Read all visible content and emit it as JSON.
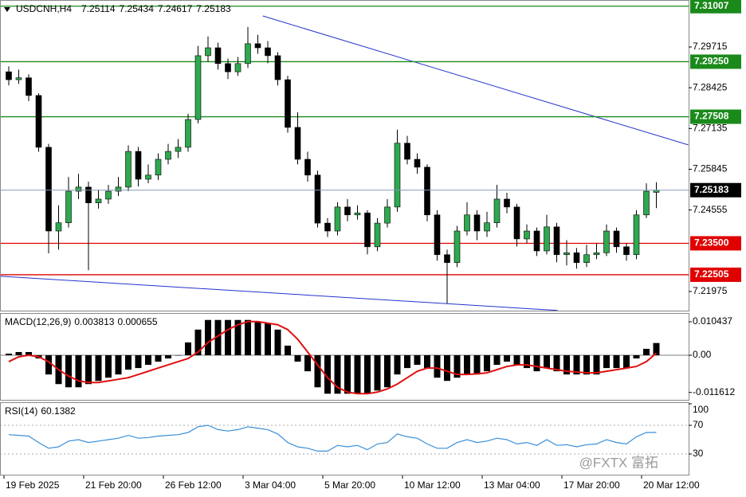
{
  "chart_data": [
    {
      "type": "candlestick",
      "title": "USDCNH,H4",
      "open": [
        7.2893,
        7.2868,
        7.2874,
        7.2818,
        7.2654,
        7.2389,
        7.2415,
        7.2515,
        7.2528,
        7.2478,
        7.249,
        7.2515,
        7.2528,
        7.2641,
        7.2553,
        7.2566,
        7.2616,
        7.2641,
        7.2654,
        7.2742,
        7.2944,
        7.2969,
        7.2919,
        7.2893,
        7.2919,
        7.2982,
        7.2969,
        7.2944,
        7.2868,
        7.2717,
        7.2616,
        7.2566,
        7.2414,
        7.2389,
        7.2465,
        7.244,
        7.2446,
        7.2339,
        7.2414,
        7.2465,
        7.2667,
        7.2616,
        7.2591,
        7.244,
        7.2314,
        7.2289,
        7.2389,
        7.244,
        7.2389,
        7.2415,
        7.249,
        7.2465,
        7.2364,
        7.2389,
        7.2326,
        7.2402,
        7.2314,
        7.232,
        7.2289,
        7.2314,
        7.232,
        7.2389,
        7.2339,
        7.2314,
        7.244,
        7.25114
      ],
      "high": [
        7.291,
        7.29,
        7.2885,
        7.2825,
        7.2665,
        7.247,
        7.256,
        7.257,
        7.2545,
        7.252,
        7.2535,
        7.256,
        7.266,
        7.2655,
        7.26,
        7.2635,
        7.2665,
        7.268,
        7.276,
        7.2975,
        7.3005,
        7.2985,
        7.2935,
        7.294,
        7.3035,
        7.301,
        7.299,
        7.2955,
        7.288,
        7.2765,
        7.264,
        7.258,
        7.243,
        7.248,
        7.249,
        7.247,
        7.2455,
        7.243,
        7.249,
        7.271,
        7.269,
        7.2635,
        7.26,
        7.2455,
        7.233,
        7.2405,
        7.248,
        7.2455,
        7.245,
        7.2535,
        7.251,
        7.2475,
        7.241,
        7.24,
        7.244,
        7.2415,
        7.236,
        7.2335,
        7.2345,
        7.235,
        7.241,
        7.24,
        7.235,
        7.2455,
        7.254,
        7.25434
      ],
      "low": [
        7.285,
        7.2855,
        7.28,
        7.264,
        7.2318,
        7.233,
        7.24,
        7.249,
        7.2265,
        7.246,
        7.2475,
        7.25,
        7.2515,
        7.253,
        7.254,
        7.255,
        7.26,
        7.262,
        7.264,
        7.273,
        7.2925,
        7.29,
        7.287,
        7.288,
        7.2905,
        7.295,
        7.292,
        7.285,
        7.27,
        7.26,
        7.2545,
        7.24,
        7.237,
        7.2375,
        7.242,
        7.2425,
        7.2315,
        7.2325,
        7.24,
        7.245,
        7.26,
        7.257,
        7.242,
        7.2295,
        7.216,
        7.2275,
        7.2375,
        7.236,
        7.237,
        7.24,
        7.2445,
        7.234,
        7.235,
        7.231,
        7.2315,
        7.229,
        7.228,
        7.227,
        7.2275,
        7.23,
        7.231,
        7.232,
        7.2295,
        7.23,
        7.243,
        7.24617
      ],
      "close": [
        7.2868,
        7.2874,
        7.2818,
        7.2654,
        7.2389,
        7.2415,
        7.2515,
        7.2528,
        7.2478,
        7.249,
        7.2515,
        7.2528,
        7.2641,
        7.2553,
        7.2566,
        7.2616,
        7.2641,
        7.2654,
        7.2742,
        7.2944,
        7.2969,
        7.2919,
        7.2893,
        7.2919,
        7.2982,
        7.2969,
        7.2944,
        7.2868,
        7.2717,
        7.2616,
        7.2566,
        7.2414,
        7.2389,
        7.2465,
        7.244,
        7.2446,
        7.2339,
        7.2414,
        7.2465,
        7.2667,
        7.2616,
        7.2591,
        7.244,
        7.2314,
        7.2289,
        7.2389,
        7.244,
        7.2389,
        7.2415,
        7.249,
        7.2465,
        7.2364,
        7.2389,
        7.2326,
        7.2402,
        7.2314,
        7.232,
        7.2289,
        7.2314,
        7.232,
        7.2389,
        7.2339,
        7.2314,
        7.244,
        7.2515,
        7.25183
      ],
      "bull_color": "#2fa84f",
      "bear_color": "#000000",
      "ylim": [
        7.21369,
        7.31203
      ],
      "yticks": [
        7.29715,
        7.28425,
        7.27135,
        7.25845,
        7.24555,
        7.21975
      ],
      "levels": [
        {
          "value": 7.31007,
          "label": "7.31007",
          "color": "#1a8a1a"
        },
        {
          "value": 7.2925,
          "label": "7.29250",
          "color": "#1a8a1a"
        },
        {
          "value": 7.27508,
          "label": "7.27508",
          "color": "#1a8a1a"
        },
        {
          "value": 7.235,
          "label": "7.23500",
          "color": "#e00000"
        },
        {
          "value": 7.22505,
          "label": "7.22505",
          "color": "#e00000"
        }
      ],
      "trendlines": [
        {
          "x": [
            25.5,
            68.2
          ],
          "y": [
            7.30698,
            7.26616
          ],
          "color": "#2233cc"
        },
        {
          "x": [
            -0.88,
            55.1
          ],
          "y": [
            7.22458,
            7.21374
          ],
          "color": "#2233cc"
        }
      ],
      "x_labels": [
        {
          "value": 0,
          "label": "19 Feb 2025"
        },
        {
          "value": 8,
          "label": "21 Feb 20:00"
        },
        {
          "value": 16,
          "label": "26 Feb 12:00"
        },
        {
          "value": 24,
          "label": "3 Mar 04:00"
        },
        {
          "value": 32,
          "label": "5 Mar 20:00"
        },
        {
          "value": 40,
          "label": "10 Mar 12:00"
        },
        {
          "value": 48,
          "label": "13 Mar 04:00"
        },
        {
          "value": 56,
          "label": "17 Mar 20:00"
        },
        {
          "value": 64,
          "label": "20 Mar 12:00"
        }
      ]
    },
    {
      "type": "macd",
      "title": "MACD(12,26,9)",
      "histogram": [
        0.0005,
        0.001,
        0.001,
        -0.001,
        -0.006,
        -0.009,
        -0.01,
        -0.01,
        -0.009,
        -0.008,
        -0.007,
        -0.006,
        -0.0045,
        -0.004,
        -0.003,
        -0.002,
        -0.001,
        0,
        0.004,
        0.008,
        0.011,
        0.011,
        0.011,
        0.011,
        0.011,
        0.0105,
        0.01,
        0.008,
        0.003,
        -0.002,
        -0.005,
        -0.01,
        -0.012,
        -0.012,
        -0.012,
        -0.012,
        -0.012,
        -0.011,
        -0.01,
        -0.006,
        -0.004,
        -0.003,
        -0.004,
        -0.007,
        -0.008,
        -0.007,
        -0.006,
        -0.006,
        -0.005,
        -0.003,
        -0.002,
        -0.003,
        -0.004,
        -0.005,
        -0.004,
        -0.005,
        -0.006,
        -0.006,
        -0.006,
        -0.006,
        -0.004,
        -0.004,
        -0.004,
        -0.001,
        0.002,
        0.003813
      ],
      "signal": [
        -0.002,
        -0.0005,
        0,
        -0.0005,
        -0.002,
        -0.0045,
        -0.0065,
        -0.008,
        -0.0085,
        -0.0085,
        -0.008,
        -0.0075,
        -0.007,
        -0.006,
        -0.005,
        -0.004,
        -0.003,
        -0.002,
        -0.001,
        0.001,
        0.004,
        0.006,
        0.008,
        0.0095,
        0.0105,
        0.0105,
        0.01,
        0.0095,
        0.008,
        0.005,
        0.001,
        -0.003,
        -0.007,
        -0.01,
        -0.0115,
        -0.012,
        -0.012,
        -0.0115,
        -0.0105,
        -0.009,
        -0.007,
        -0.005,
        -0.004,
        -0.004,
        -0.005,
        -0.006,
        -0.006,
        -0.0058,
        -0.0055,
        -0.0045,
        -0.0035,
        -0.003,
        -0.003,
        -0.0035,
        -0.004,
        -0.0045,
        -0.005,
        -0.0052,
        -0.0055,
        -0.0055,
        -0.005,
        -0.0045,
        -0.004,
        -0.0035,
        -0.002,
        0.000655
      ],
      "histogram_color": "#000000",
      "signal_color": "#e01010",
      "ylim": [
        -0.01416,
        0.01317
      ],
      "yticks": [
        0.010437,
        {
          "value": 0,
          "label": "0.00"
        },
        -0.011612
      ]
    },
    {
      "type": "line",
      "title": "RSI(14)",
      "values": [
        57,
        56,
        55,
        46,
        38,
        40,
        48,
        50,
        46,
        48,
        50,
        52,
        56,
        52,
        53,
        55,
        56,
        57,
        60,
        68,
        70,
        64,
        62,
        64,
        68,
        66,
        64,
        58,
        46,
        40,
        38,
        34,
        34,
        42,
        40,
        42,
        36,
        44,
        46,
        58,
        54,
        52,
        44,
        38,
        38,
        46,
        50,
        46,
        48,
        52,
        50,
        44,
        46,
        42,
        50,
        42,
        43,
        40,
        43,
        44,
        50,
        46,
        44,
        54,
        60,
        60.1382
      ],
      "color": "#3a8fd9",
      "ylim": [
        0,
        100
      ],
      "yticks": [
        100,
        70,
        30
      ]
    }
  ],
  "watermark": "@FXTX 富拓"
}
